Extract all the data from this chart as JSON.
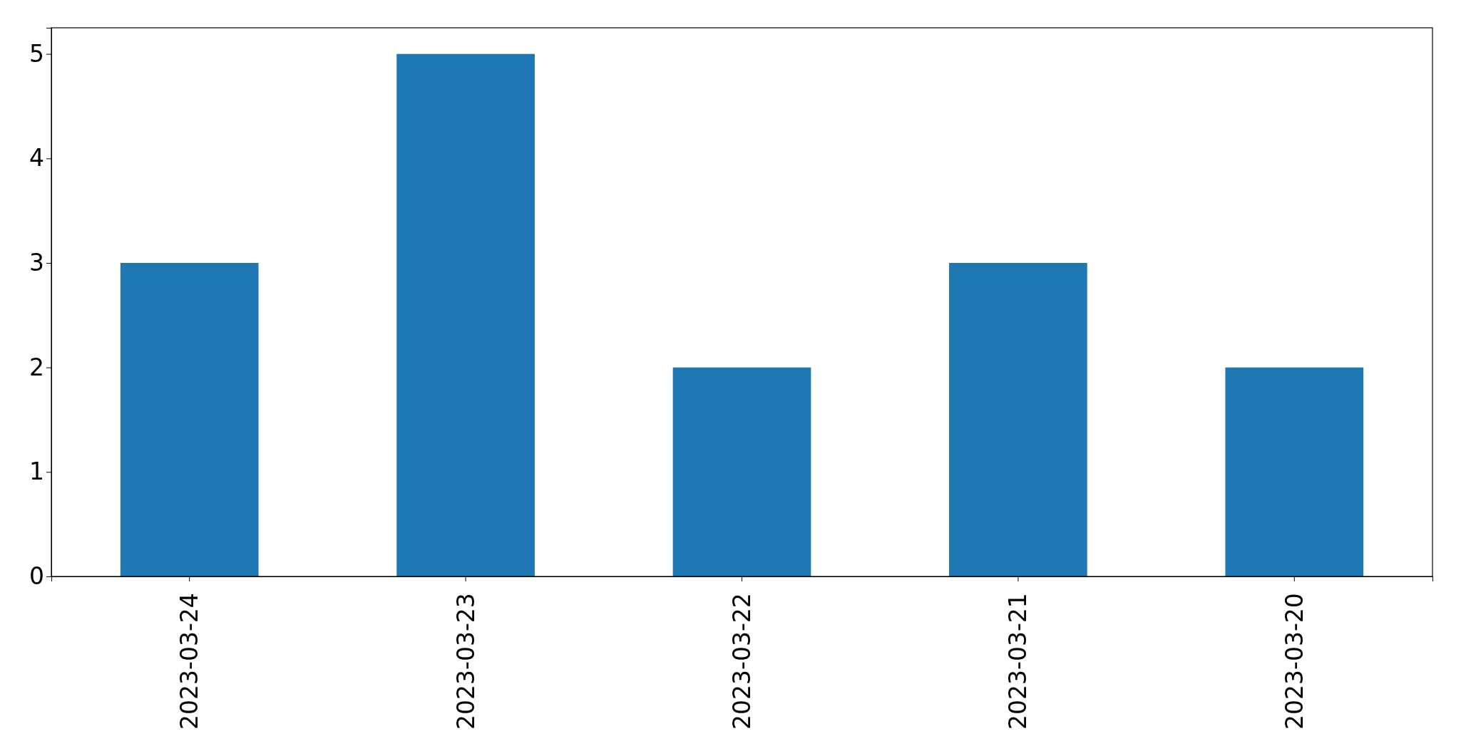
{
  "chart_data": {
    "type": "bar",
    "categories": [
      "2023-03-24",
      "2023-03-23",
      "2023-03-22",
      "2023-03-21",
      "2023-03-20"
    ],
    "values": [
      3,
      5,
      2,
      3,
      2
    ],
    "color": "#1f77b4",
    "ylim": [
      0,
      5.25
    ],
    "yticks": [
      0,
      1,
      2,
      3,
      4,
      5
    ],
    "grid": false
  }
}
